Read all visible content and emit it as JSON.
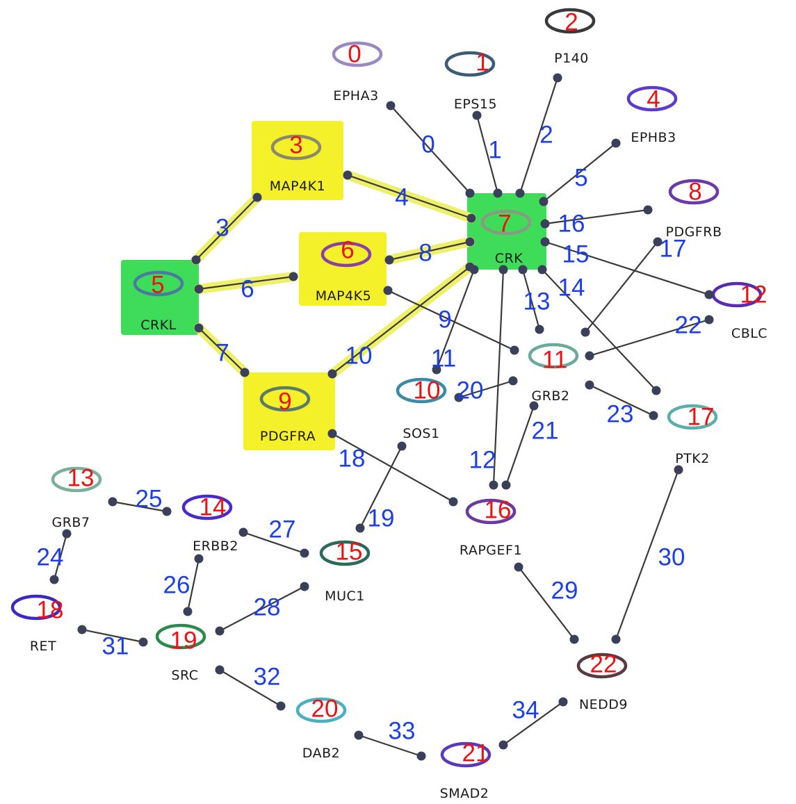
{
  "colors": {
    "hub": "#3fdc5a",
    "highlight": "#f4f02a",
    "glow": "#eef06a",
    "edge": "#3a3a3a",
    "dot": "#3a3f5a",
    "node_number": "#ee1111",
    "edge_number": "#1a3ee8"
  },
  "nodes": [
    {
      "id": "0",
      "label": "EPHA3",
      "ring": "#9a88c0"
    },
    {
      "id": "1",
      "label": "EPS15",
      "ring": "#3a5c78"
    },
    {
      "id": "2",
      "label": "P140",
      "ring": "#3a3a3a"
    },
    {
      "id": "3",
      "label": "MAP4K1",
      "ring": "#8a8a6a"
    },
    {
      "id": "4",
      "label": "EPHB3",
      "ring": "#5b3ad0"
    },
    {
      "id": "5",
      "label": "CRKL",
      "ring": "#4a7aa0"
    },
    {
      "id": "6",
      "label": "MAP4K5",
      "ring": "#8a40a8"
    },
    {
      "id": "7",
      "label": "CRK",
      "ring": "#8a9a80"
    },
    {
      "id": "8",
      "label": "PDGFRB",
      "ring": "#6a3aa8"
    },
    {
      "id": "9",
      "label": "PDGFRA",
      "ring": "#5a7a6a"
    },
    {
      "id": "10",
      "label": "SOS1",
      "ring": "#3a8aa8"
    },
    {
      "id": "11",
      "label": "GRB2",
      "ring": "#6aaa9a"
    },
    {
      "id": "12",
      "label": "CBLC",
      "ring": "#5a2ab0"
    },
    {
      "id": "13",
      "label": "GRB7",
      "ring": "#7ab09a"
    },
    {
      "id": "14",
      "label": "ERBB2",
      "ring": "#4a2ac8"
    },
    {
      "id": "15",
      "label": "MUC1",
      "ring": "#2a6a5a"
    },
    {
      "id": "16",
      "label": "RAPGEF1",
      "ring": "#6a3aa0"
    },
    {
      "id": "17",
      "label": "PTK2",
      "ring": "#5ab0a8"
    },
    {
      "id": "18",
      "label": "RET",
      "ring": "#3a2ac0"
    },
    {
      "id": "19",
      "label": "SRC",
      "ring": "#2a8a4a"
    },
    {
      "id": "20",
      "label": "DAB2",
      "ring": "#4ab0c0"
    },
    {
      "id": "21",
      "label": "SMAD2",
      "ring": "#5a3ab8"
    },
    {
      "id": "22",
      "label": "NEDD9",
      "ring": "#5a3a40"
    }
  ],
  "edges": [
    {
      "id": "0"
    },
    {
      "id": "1"
    },
    {
      "id": "2"
    },
    {
      "id": "3"
    },
    {
      "id": "4"
    },
    {
      "id": "5"
    },
    {
      "id": "6"
    },
    {
      "id": "7"
    },
    {
      "id": "8"
    },
    {
      "id": "9"
    },
    {
      "id": "10"
    },
    {
      "id": "11"
    },
    {
      "id": "12"
    },
    {
      "id": "13"
    },
    {
      "id": "14"
    },
    {
      "id": "15"
    },
    {
      "id": "16"
    },
    {
      "id": "17"
    },
    {
      "id": "18"
    },
    {
      "id": "19"
    },
    {
      "id": "20"
    },
    {
      "id": "21"
    },
    {
      "id": "22"
    },
    {
      "id": "23"
    },
    {
      "id": "24"
    },
    {
      "id": "25"
    },
    {
      "id": "26"
    },
    {
      "id": "27"
    },
    {
      "id": "28"
    },
    {
      "id": "29"
    },
    {
      "id": "30"
    },
    {
      "id": "31"
    },
    {
      "id": "32"
    },
    {
      "id": "33"
    },
    {
      "id": "34"
    }
  ]
}
